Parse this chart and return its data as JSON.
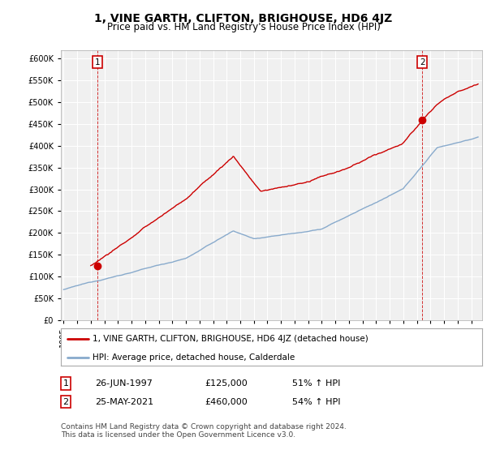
{
  "title": "1, VINE GARTH, CLIFTON, BRIGHOUSE, HD6 4JZ",
  "subtitle": "Price paid vs. HM Land Registry's House Price Index (HPI)",
  "ylim": [
    0,
    620000
  ],
  "yticks": [
    0,
    50000,
    100000,
    150000,
    200000,
    250000,
    300000,
    350000,
    400000,
    450000,
    500000,
    550000,
    600000
  ],
  "xlim_start": 1994.8,
  "xlim_end": 2025.8,
  "background_color": "#ffffff",
  "plot_bg_color": "#f0f0f0",
  "grid_color": "#ffffff",
  "red_color": "#cc0000",
  "blue_color": "#88aacc",
  "sale1_x": 1997.48,
  "sale1_y": 125000,
  "sale2_x": 2021.4,
  "sale2_y": 460000,
  "legend_entry1": "1, VINE GARTH, CLIFTON, BRIGHOUSE, HD6 4JZ (detached house)",
  "legend_entry2": "HPI: Average price, detached house, Calderdale",
  "table_row1": [
    "1",
    "26-JUN-1997",
    "£125,000",
    "51% ↑ HPI"
  ],
  "table_row2": [
    "2",
    "25-MAY-2021",
    "£460,000",
    "54% ↑ HPI"
  ],
  "footnote": "Contains HM Land Registry data © Crown copyright and database right 2024.\nThis data is licensed under the Open Government Licence v3.0.",
  "title_fontsize": 10,
  "subtitle_fontsize": 8.5,
  "tick_fontsize": 7,
  "legend_fontsize": 7.5,
  "table_fontsize": 8,
  "footnote_fontsize": 6.5
}
